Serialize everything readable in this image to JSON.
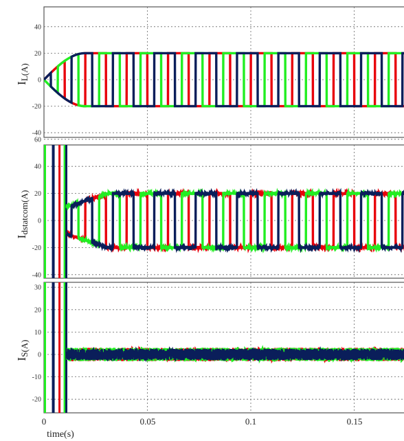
{
  "figure": {
    "x_tick_labels": [
      "0",
      "0.05",
      "0.1",
      "0.15"
    ],
    "xlabel": "time(s)"
  },
  "chart_data": [
    {
      "type": "line",
      "ylabel_main": "I",
      "ylabel_sub": "L(A)",
      "xlim": [
        0,
        0.18
      ],
      "ylim": [
        -45,
        45
      ],
      "y_ticks": [
        40,
        20,
        0,
        -20,
        -40
      ],
      "y_tick_labels": [
        "40",
        "20",
        "0",
        "-20",
        "-40"
      ],
      "grid": true,
      "waveform": "square",
      "frequency_hz": 50,
      "amplitude": 20,
      "rise_time_s": 0.02,
      "series": [
        {
          "color": "#e8000b",
          "phase_deg": 0,
          "values_desc": "±20 A"
        },
        {
          "color": "#22ee22",
          "phase_deg": 120,
          "values_desc": "±20 A"
        },
        {
          "color": "#0a1e5a",
          "phase_deg": 240,
          "values_desc": "±20 A"
        }
      ]
    },
    {
      "type": "line",
      "ylabel_main": "I",
      "ylabel_sub": "dstatcom(A)",
      "xlim": [
        0,
        0.18
      ],
      "ylim": [
        -40,
        70
      ],
      "y_ticks": [
        60,
        40,
        20,
        0,
        -20,
        -40
      ],
      "y_tick_labels": [
        "60",
        "40",
        "20",
        "0",
        "-20",
        "-40"
      ],
      "grid": true,
      "waveform": "square",
      "frequency_hz": 50,
      "amplitude": 20,
      "transient_end_s": 0.011,
      "series": [
        {
          "color": "#e8000b",
          "phase_deg": 0,
          "values_desc": "±20 A"
        },
        {
          "color": "#22ee22",
          "phase_deg": 120,
          "values_desc": "±20 A"
        },
        {
          "color": "#0a1e5a",
          "phase_deg": 240,
          "values_desc": "±20 A"
        }
      ]
    },
    {
      "type": "line",
      "ylabel_main": "I",
      "ylabel_sub": "S(A)",
      "xlim": [
        0,
        0.18
      ],
      "ylim": [
        -25,
        32
      ],
      "y_ticks": [
        30,
        20,
        10,
        0,
        -10,
        -20
      ],
      "y_tick_labels": [
        "30",
        "20",
        "10",
        "0",
        "-10",
        "-20"
      ],
      "grid": true,
      "waveform": "noise",
      "amplitude": 3,
      "transient_end_s": 0.011,
      "series": [
        {
          "color": "#e8000b",
          "values_desc": "≈0 A ±3"
        },
        {
          "color": "#22ee22",
          "values_desc": "≈0 A ±3"
        },
        {
          "color": "#0a1e5a",
          "values_desc": "≈0 A ±3"
        }
      ]
    }
  ]
}
